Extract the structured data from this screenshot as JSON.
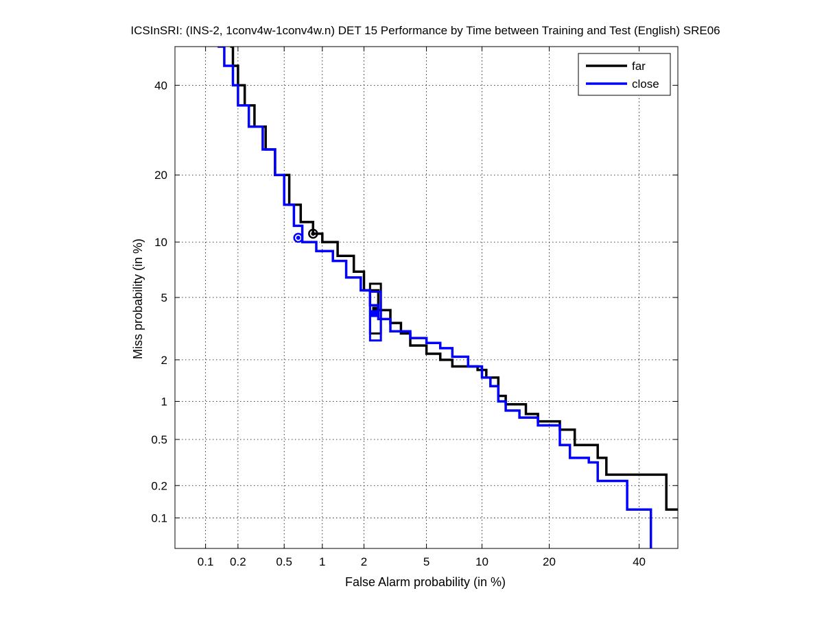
{
  "chart_data": {
    "type": "line",
    "title": "ICSInSRI: (INS-2, 1conv4w-1conv4w.n) DET 15 Performance by Time between Training and Test (English) SRE06",
    "xlabel": "False Alarm probability (in %)",
    "ylabel": "Miss probability (in %)",
    "scale": "normal-deviate (probit) on both axes",
    "xlim": [
      0.05,
      50
    ],
    "ylim": [
      0.05,
      50
    ],
    "x_ticks": [
      0.1,
      0.2,
      0.5,
      1,
      2,
      5,
      10,
      20,
      40
    ],
    "x_tick_labels": [
      "0.1",
      "0.2",
      "0.5",
      "1",
      "2",
      "5",
      "10",
      "20",
      "40"
    ],
    "y_ticks": [
      0.1,
      0.2,
      0.5,
      1,
      2,
      5,
      10,
      20,
      40
    ],
    "y_tick_labels": [
      "0.1",
      "0.2",
      "0.5",
      "1",
      "2",
      "5",
      "10",
      "20",
      "40"
    ],
    "grid": true,
    "legend_position": "top-right",
    "series": [
      {
        "name": "far",
        "color": "#000000",
        "points": [
          [
            0.17,
            50
          ],
          [
            0.18,
            45
          ],
          [
            0.2,
            40
          ],
          [
            0.23,
            35
          ],
          [
            0.28,
            30
          ],
          [
            0.35,
            25
          ],
          [
            0.42,
            20
          ],
          [
            0.55,
            15
          ],
          [
            0.68,
            12.5
          ],
          [
            0.85,
            11
          ],
          [
            1.0,
            10
          ],
          [
            1.3,
            8.5
          ],
          [
            1.7,
            7
          ],
          [
            2.0,
            5.5
          ],
          [
            2.5,
            4.2
          ],
          [
            3.0,
            3.5
          ],
          [
            3.5,
            3
          ],
          [
            4.0,
            2.5
          ],
          [
            5.0,
            2.2
          ],
          [
            6.0,
            2.0
          ],
          [
            7.0,
            1.8
          ],
          [
            9.5,
            1.7
          ],
          [
            10.5,
            1.5
          ],
          [
            12,
            1.1
          ],
          [
            13,
            0.95
          ],
          [
            16,
            0.8
          ],
          [
            18,
            0.7
          ],
          [
            22,
            0.6
          ],
          [
            25,
            0.45
          ],
          [
            30,
            0.35
          ],
          [
            32,
            0.25
          ],
          [
            45,
            0.25
          ],
          [
            47,
            0.12
          ],
          [
            50,
            0.12
          ]
        ],
        "min_dcf_point": [
          0.85,
          11
        ],
        "act_dcf_point": [
          2.4,
          4.2
        ],
        "confidence_box": {
          "x": [
            2.2,
            2.6
          ],
          "miss": [
            3.0,
            6.0
          ]
        }
      },
      {
        "name": "close",
        "color": "#0000ff",
        "points": [
          [
            0.13,
            50
          ],
          [
            0.15,
            45
          ],
          [
            0.18,
            40
          ],
          [
            0.2,
            35
          ],
          [
            0.25,
            30
          ],
          [
            0.33,
            25
          ],
          [
            0.42,
            20
          ],
          [
            0.5,
            15
          ],
          [
            0.6,
            12
          ],
          [
            0.7,
            10
          ],
          [
            0.9,
            9
          ],
          [
            1.2,
            8
          ],
          [
            1.5,
            6.5
          ],
          [
            1.9,
            5.5
          ],
          [
            2.2,
            4.5
          ],
          [
            2.5,
            3.7
          ],
          [
            3.0,
            3.1
          ],
          [
            4.0,
            2.8
          ],
          [
            5.0,
            2.6
          ],
          [
            6.0,
            2.4
          ],
          [
            7.0,
            2.1
          ],
          [
            8.5,
            1.8
          ],
          [
            10,
            1.5
          ],
          [
            11,
            1.3
          ],
          [
            12,
            1.0
          ],
          [
            13,
            0.85
          ],
          [
            15,
            0.75
          ],
          [
            18,
            0.65
          ],
          [
            22,
            0.45
          ],
          [
            24,
            0.35
          ],
          [
            28,
            0.32
          ],
          [
            30,
            0.22
          ],
          [
            35,
            0.22
          ],
          [
            37,
            0.12
          ],
          [
            42,
            0.12
          ],
          [
            43,
            0.05
          ]
        ],
        "min_dcf_point": [
          0.65,
          10.5
        ],
        "act_dcf_point": [
          2.35,
          4.0
        ],
        "confidence_box": {
          "x": [
            2.2,
            2.6
          ],
          "miss": [
            2.7,
            5.4
          ]
        }
      }
    ]
  }
}
